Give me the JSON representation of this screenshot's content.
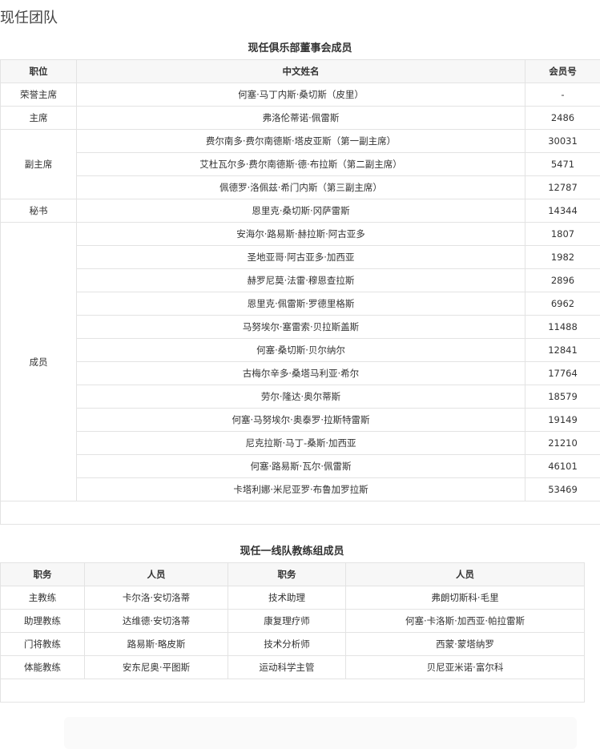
{
  "page_title": "现任团队",
  "board": {
    "caption": "现任俱乐部董事会成员",
    "headers": [
      "职位",
      "中文姓名",
      "会员号"
    ],
    "groups": [
      {
        "position": "荣誉主席",
        "members": [
          {
            "name": "何塞·马丁内斯·桑切斯（皮里）",
            "id": "-"
          }
        ]
      },
      {
        "position": "主席",
        "members": [
          {
            "name": "弗洛伦蒂诺·佩雷斯",
            "id": "2486"
          }
        ]
      },
      {
        "position": "副主席",
        "members": [
          {
            "name": "费尔南多·费尔南德斯·塔皮亚斯（第一副主席）",
            "id": "30031"
          },
          {
            "name": "艾杜瓦尔多·费尔南德斯·德·布拉斯（第二副主席）",
            "id": "5471"
          },
          {
            "name": "佩德罗·洛佩兹·希门内斯（第三副主席）",
            "id": "12787"
          }
        ]
      },
      {
        "position": "秘书",
        "members": [
          {
            "name": "恩里克·桑切斯·冈萨雷斯",
            "id": "14344"
          }
        ]
      },
      {
        "position": "成员",
        "members": [
          {
            "name": "安海尔·路易斯·赫拉斯·阿古亚多",
            "id": "1807"
          },
          {
            "name": "圣地亚哥·阿古亚多·加西亚",
            "id": "1982"
          },
          {
            "name": "赫罗尼莫·法雷·穆恩查拉斯",
            "id": "2896"
          },
          {
            "name": "恩里克·佩雷斯·罗德里格斯",
            "id": "6962"
          },
          {
            "name": "马努埃尔·塞雷索·贝拉斯盖斯",
            "id": "11488"
          },
          {
            "name": "何塞·桑切斯·贝尔纳尔",
            "id": "12841"
          },
          {
            "name": "古梅尔辛多·桑塔马利亚·希尔",
            "id": "17764"
          },
          {
            "name": "劳尔·隆达·奥尔蒂斯",
            "id": "18579"
          },
          {
            "name": "何塞·马努埃尔·奥泰罗·拉斯特雷斯",
            "id": "19149"
          },
          {
            "name": "尼克拉斯·马丁-桑斯·加西亚",
            "id": "21210"
          },
          {
            "name": "何塞·路易斯·瓦尔·佩雷斯",
            "id": "46101"
          },
          {
            "name": "卡塔利娜·米尼亚罗·布鲁加罗拉斯",
            "id": "53469"
          }
        ]
      }
    ]
  },
  "coaches": {
    "caption": "现任一线队教练组成员",
    "headers": [
      "职务",
      "人员",
      "职务",
      "人员"
    ],
    "rows": [
      [
        "主教练",
        "卡尔洛·安切洛蒂",
        "技术助理",
        "弗朗切斯科·毛里"
      ],
      [
        "助理教练",
        "达维德·安切洛蒂",
        "康复理疗师",
        "何塞·卡洛斯·加西亚·帕拉雷斯"
      ],
      [
        "门将教练",
        "路易斯·略皮斯",
        "技术分析师",
        "西蒙·蒙塔纳罗"
      ],
      [
        "体能教练",
        "安东尼奥·平图斯",
        "运动科学主管",
        "贝尼亚米诺·富尔科"
      ]
    ]
  }
}
